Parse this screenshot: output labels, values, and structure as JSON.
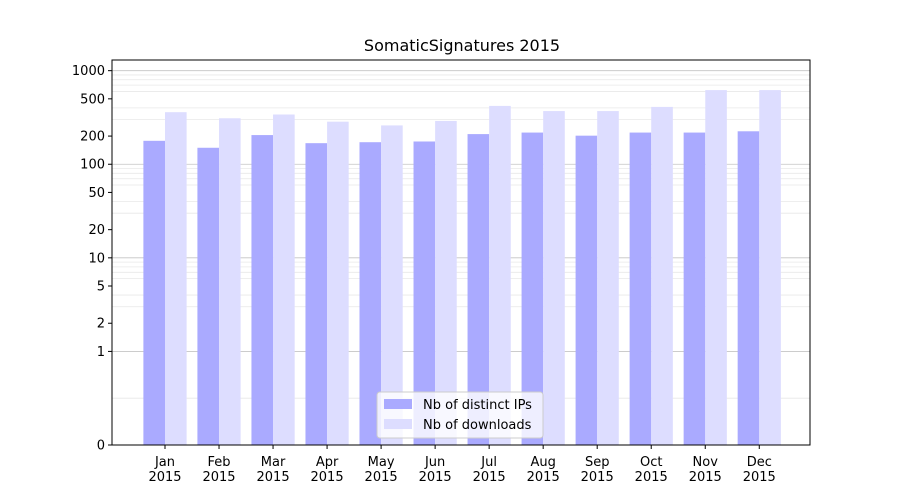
{
  "chart_data": {
    "type": "bar",
    "title": "SomaticSignatures 2015",
    "xlabel": "",
    "ylabel": "",
    "yscale": "symlog",
    "ylim": [
      0,
      1300
    ],
    "grid": true,
    "legend_position": "bottom-center",
    "categories": [
      "Jan\n2015",
      "Feb\n2015",
      "Mar\n2015",
      "Apr\n2015",
      "May\n2015",
      "Jun\n2015",
      "Jul\n2015",
      "Aug\n2015",
      "Sep\n2015",
      "Oct\n2015",
      "Nov\n2015",
      "Dec\n2015"
    ],
    "yticks": [
      0,
      1,
      2,
      5,
      10,
      20,
      50,
      100,
      200,
      500,
      1000
    ],
    "series": [
      {
        "name": "Nb of distinct IPs",
        "color": "#aaaaff",
        "values": [
          178,
          150,
          205,
          168,
          172,
          175,
          210,
          218,
          202,
          218,
          218,
          225
        ]
      },
      {
        "name": "Nb of downloads",
        "color": "#ddddff",
        "values": [
          360,
          310,
          340,
          285,
          260,
          290,
          420,
          370,
          370,
          410,
          620,
          620
        ]
      }
    ]
  }
}
